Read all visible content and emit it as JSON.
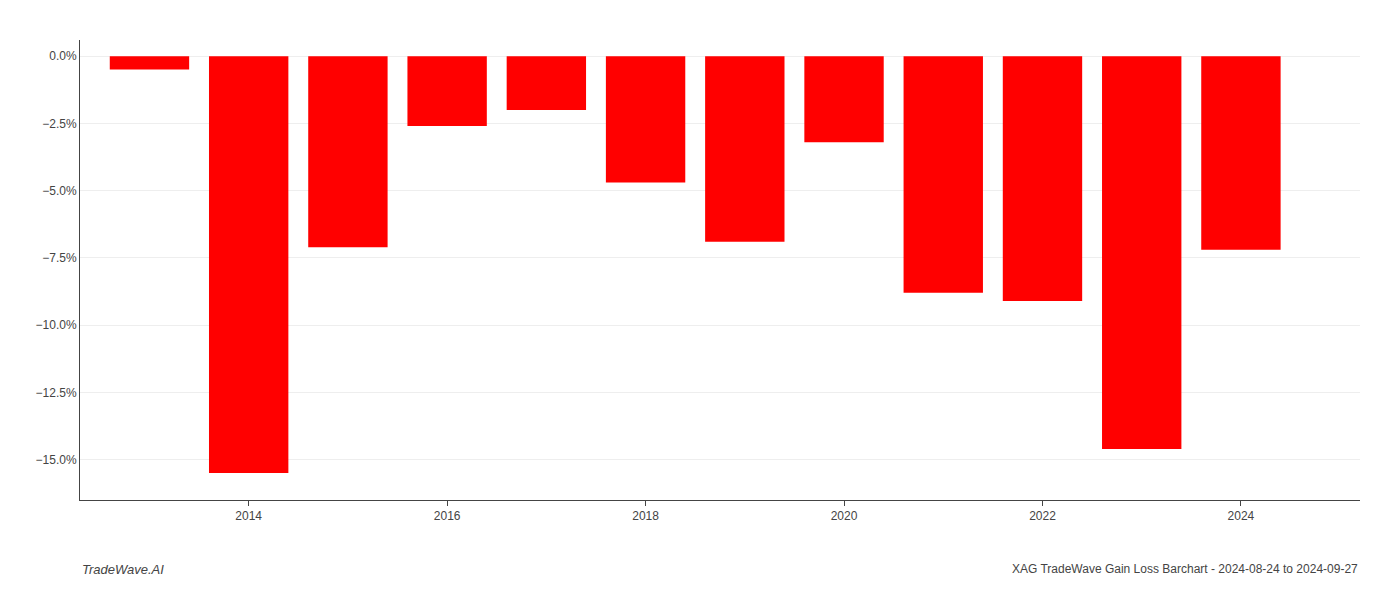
{
  "chart_data": {
    "type": "bar",
    "x": [
      2013,
      2014,
      2015,
      2016,
      2017,
      2018,
      2019,
      2020,
      2021,
      2022,
      2023,
      2024
    ],
    "values": [
      -0.5,
      -15.5,
      -7.1,
      -2.6,
      -2.0,
      -4.7,
      -6.9,
      -3.2,
      -8.8,
      -9.1,
      -14.6,
      -7.2
    ],
    "color": "#ff0000",
    "xlim": [
      2012.3,
      2025.2
    ],
    "xticks": [
      2014,
      2016,
      2018,
      2020,
      2022,
      2024
    ],
    "ylim": [
      -16.5,
      0.6
    ],
    "yticks": [
      {
        "value": 0.0,
        "label": "0.0%"
      },
      {
        "value": -2.5,
        "label": "−2.5%"
      },
      {
        "value": -5.0,
        "label": "−5.0%"
      },
      {
        "value": -7.5,
        "label": "−7.5%"
      },
      {
        "value": -10.0,
        "label": "−10.0%"
      },
      {
        "value": -12.5,
        "label": "−12.5%"
      },
      {
        "value": -15.0,
        "label": "−15.0%"
      }
    ],
    "grid": true,
    "annotations": [
      "TradeWave.AI",
      "XAG TradeWave Gain Loss Barchart - 2024-08-24 to 2024-09-27"
    ]
  }
}
